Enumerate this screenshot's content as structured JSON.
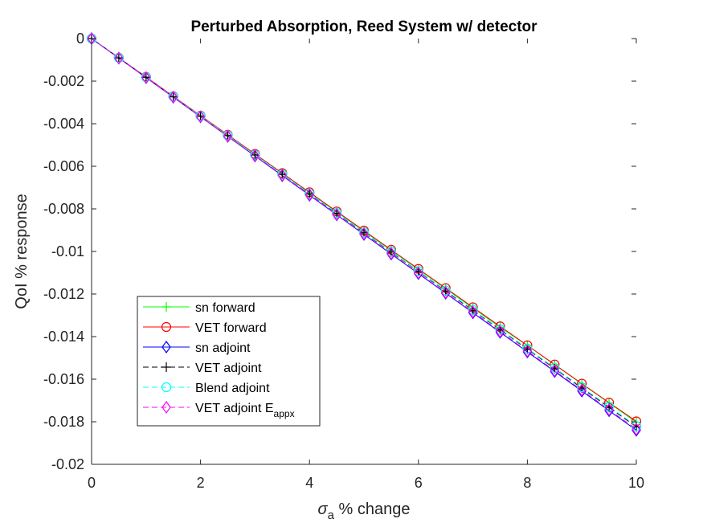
{
  "chart_data": {
    "type": "line",
    "title": "Perturbed Absorption, Reed System w/ detector",
    "xlabel_symbol": "σ",
    "xlabel_subscript": "a",
    "xlabel_rest": " % change",
    "ylabel": "QoI % response",
    "xlim": [
      0,
      10
    ],
    "ylim": [
      -0.02,
      0
    ],
    "xticks": [
      0,
      2,
      4,
      6,
      8,
      10
    ],
    "xtick_labels": [
      "0",
      "2",
      "4",
      "6",
      "8",
      "10"
    ],
    "yticks": [
      0,
      -0.002,
      -0.004,
      -0.006,
      -0.008,
      -0.01,
      -0.012,
      -0.014,
      -0.016,
      -0.018,
      -0.02
    ],
    "ytick_labels": [
      "0",
      "-0.002",
      "-0.004",
      "-0.006",
      "-0.008",
      "-0.01",
      "-0.012",
      "-0.014",
      "-0.016",
      "-0.018",
      "-0.02"
    ],
    "grid": false,
    "legend_placement": "lower-left",
    "x": [
      0,
      0.5,
      1,
      1.5,
      2,
      2.5,
      3,
      3.5,
      4,
      4.5,
      5,
      5.5,
      6,
      6.5,
      7,
      7.5,
      8,
      8.5,
      9,
      9.5,
      10
    ],
    "series": [
      {
        "name": "sn forward",
        "color": "#00ff00",
        "line": "solid",
        "marker": "plus",
        "values": [
          0,
          -0.0009,
          -0.00181,
          -0.00272,
          -0.00363,
          -0.00454,
          -0.00544,
          -0.00634,
          -0.00724,
          -0.00815,
          -0.00905,
          -0.00995,
          -0.01085,
          -0.01175,
          -0.01266,
          -0.01356,
          -0.01442,
          -0.01532,
          -0.01622,
          -0.01712,
          -0.01802
        ]
      },
      {
        "name": "VET forward",
        "color": "#ff0000",
        "line": "solid",
        "marker": "circle",
        "values": [
          0,
          -0.0009,
          -0.0018,
          -0.00271,
          -0.00362,
          -0.00452,
          -0.00542,
          -0.00632,
          -0.00722,
          -0.00812,
          -0.00902,
          -0.00992,
          -0.01082,
          -0.01172,
          -0.01262,
          -0.01352,
          -0.01441,
          -0.01531,
          -0.01621,
          -0.0171,
          -0.01798
        ]
      },
      {
        "name": "sn adjoint",
        "color": "#0000ff",
        "line": "solid",
        "marker": "diamond",
        "values": [
          0,
          -0.00092,
          -0.00184,
          -0.00276,
          -0.00368,
          -0.0046,
          -0.00552,
          -0.00644,
          -0.00736,
          -0.00828,
          -0.0092,
          -0.01012,
          -0.01104,
          -0.01196,
          -0.01288,
          -0.0138,
          -0.01472,
          -0.01564,
          -0.01656,
          -0.01748,
          -0.0184
        ]
      },
      {
        "name": "VET adjoint",
        "color": "#000000",
        "line": "dashed",
        "marker": "plus",
        "values": [
          0,
          -0.00091,
          -0.00182,
          -0.00274,
          -0.00365,
          -0.00456,
          -0.00547,
          -0.00638,
          -0.0073,
          -0.00821,
          -0.00912,
          -0.01003,
          -0.01094,
          -0.01186,
          -0.01277,
          -0.01368,
          -0.01459,
          -0.0155,
          -0.01642,
          -0.01733,
          -0.01824
        ]
      },
      {
        "name": "Blend adjoint",
        "color": "#00ffff",
        "line": "dashed",
        "marker": "circle",
        "values": [
          0,
          -0.00091,
          -0.00182,
          -0.00273,
          -0.00364,
          -0.00455,
          -0.00546,
          -0.00637,
          -0.00728,
          -0.00819,
          -0.0091,
          -0.01001,
          -0.01092,
          -0.01183,
          -0.01274,
          -0.01365,
          -0.01456,
          -0.01547,
          -0.01638,
          -0.01729,
          -0.0182
        ]
      },
      {
        "name": "VET adjoint E",
        "name_subscript": "appx",
        "color": "#ff00ff",
        "line": "dashed",
        "marker": "diamond",
        "values": [
          0,
          -0.00092,
          -0.00183,
          -0.00275,
          -0.00367,
          -0.00459,
          -0.0055,
          -0.00642,
          -0.00734,
          -0.00826,
          -0.00917,
          -0.01009,
          -0.01101,
          -0.01193,
          -0.01284,
          -0.01376,
          -0.01468,
          -0.0156,
          -0.01651,
          -0.01743,
          -0.01835
        ]
      }
    ]
  }
}
